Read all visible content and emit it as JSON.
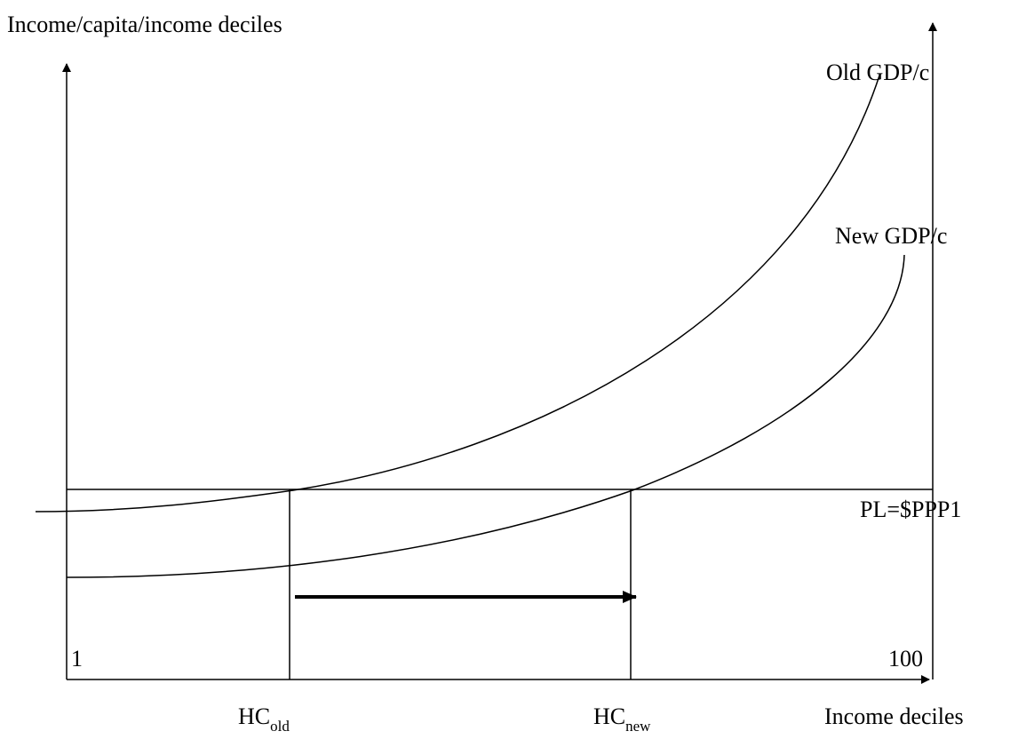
{
  "title": "Income/capita/income deciles",
  "curves": [
    {
      "label": "Old GDP/c"
    },
    {
      "label": "New GDP/c"
    }
  ],
  "poverty_line": {
    "label": "PL=$PPP1"
  },
  "x_axis": {
    "label": "Income deciles",
    "start": "1",
    "end": "100"
  },
  "markers": [
    {
      "label": "HC",
      "subscript": "old"
    },
    {
      "label": "HC",
      "subscript": "new"
    }
  ]
}
